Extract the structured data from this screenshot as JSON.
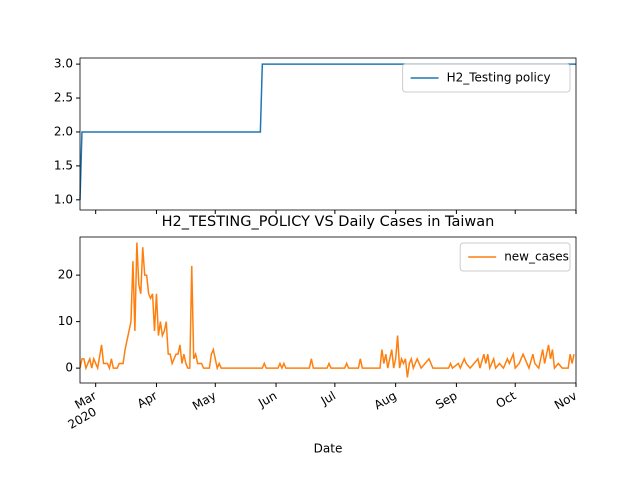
{
  "chart_data": [
    {
      "type": "line",
      "x": [
        "2020-02-22",
        "2020-02-23",
        "2020-05-24",
        "2020-05-25",
        "2020-11-01"
      ],
      "series": [
        {
          "name": "H2_Testing policy",
          "color": "#1f77b4",
          "values": [
            1,
            2,
            2,
            3,
            3
          ]
        }
      ],
      "xlim": [
        "2020-02-22",
        "2020-11-01"
      ],
      "xticks": [
        "2020-03-01",
        "2020-04-01",
        "2020-05-01",
        "2020-06-01",
        "2020-07-01",
        "2020-08-01",
        "2020-09-01",
        "2020-10-01",
        "2020-11-01"
      ],
      "ylim": [
        0.85,
        3.09
      ],
      "yticks": [
        {
          "value": 1,
          "label": "1.0"
        },
        {
          "value": 1.5,
          "label": "1.5"
        },
        {
          "value": 2,
          "label": "2.0"
        },
        {
          "value": 2.5,
          "label": "2.5"
        },
        {
          "value": 3,
          "label": "3.0"
        }
      ],
      "legend": "upper right"
    },
    {
      "type": "line",
      "title": "H2_TESTING_POLICY VS Daily Cases in Taiwan",
      "xlabel": "Date",
      "x_year_label": "2020",
      "x": [
        "2020-02-22",
        "2020-02-23",
        "2020-02-24",
        "2020-02-25",
        "2020-02-26",
        "2020-02-27",
        "2020-02-28",
        "2020-02-29",
        "2020-03-01",
        "2020-03-02",
        "2020-03-04",
        "2020-03-05",
        "2020-03-07",
        "2020-03-08",
        "2020-03-09",
        "2020-03-10",
        "2020-03-12",
        "2020-03-13",
        "2020-03-14",
        "2020-03-15",
        "2020-03-16",
        "2020-03-17",
        "2020-03-18",
        "2020-03-19",
        "2020-03-20",
        "2020-03-21",
        "2020-03-22",
        "2020-03-23",
        "2020-03-24",
        "2020-03-25",
        "2020-03-26",
        "2020-03-27",
        "2020-03-28",
        "2020-03-29",
        "2020-03-30",
        "2020-03-31",
        "2020-04-01",
        "2020-04-02",
        "2020-04-03",
        "2020-04-04",
        "2020-04-05",
        "2020-04-06",
        "2020-04-07",
        "2020-04-08",
        "2020-04-09",
        "2020-04-10",
        "2020-04-11",
        "2020-04-12",
        "2020-04-13",
        "2020-04-14",
        "2020-04-15",
        "2020-04-16",
        "2020-04-17",
        "2020-04-18",
        "2020-04-19",
        "2020-04-20",
        "2020-04-21",
        "2020-04-22",
        "2020-04-23",
        "2020-04-24",
        "2020-04-25",
        "2020-04-28",
        "2020-04-29",
        "2020-04-30",
        "2020-05-01",
        "2020-05-02",
        "2020-05-03",
        "2020-05-04",
        "2020-05-25",
        "2020-05-26",
        "2020-05-27",
        "2020-06-02",
        "2020-06-03",
        "2020-06-04",
        "2020-06-05",
        "2020-06-06",
        "2020-06-18",
        "2020-06-19",
        "2020-06-20",
        "2020-06-27",
        "2020-06-28",
        "2020-06-29",
        "2020-07-06",
        "2020-07-07",
        "2020-07-08",
        "2020-07-13",
        "2020-07-14",
        "2020-07-15",
        "2020-07-24",
        "2020-07-25",
        "2020-07-26",
        "2020-07-27",
        "2020-07-28",
        "2020-07-29",
        "2020-07-30",
        "2020-07-31",
        "2020-08-01",
        "2020-08-02",
        "2020-08-03",
        "2020-08-04",
        "2020-08-05",
        "2020-08-06",
        "2020-08-07",
        "2020-08-08",
        "2020-08-09",
        "2020-08-10",
        "2020-08-12",
        "2020-08-13",
        "2020-08-14",
        "2020-08-16",
        "2020-08-18",
        "2020-08-19",
        "2020-08-20",
        "2020-08-28",
        "2020-08-29",
        "2020-08-30",
        "2020-09-02",
        "2020-09-03",
        "2020-09-05",
        "2020-09-06",
        "2020-09-08",
        "2020-09-10",
        "2020-09-12",
        "2020-09-13",
        "2020-09-15",
        "2020-09-16",
        "2020-09-17",
        "2020-09-18",
        "2020-09-20",
        "2020-09-21",
        "2020-09-23",
        "2020-09-25",
        "2020-09-27",
        "2020-09-28",
        "2020-09-30",
        "2020-10-01",
        "2020-10-03",
        "2020-10-05",
        "2020-10-06",
        "2020-10-08",
        "2020-10-10",
        "2020-10-11",
        "2020-10-13",
        "2020-10-15",
        "2020-10-16",
        "2020-10-18",
        "2020-10-19",
        "2020-10-20",
        "2020-10-21",
        "2020-10-23",
        "2020-10-25",
        "2020-10-28",
        "2020-10-29",
        "2020-10-30",
        "2020-10-31"
      ],
      "series": [
        {
          "name": "new_cases",
          "color": "#ff7f0e",
          "values": [
            0,
            2,
            2,
            0,
            1,
            2,
            0,
            2,
            1,
            0,
            5,
            1,
            1,
            0,
            2,
            0,
            0,
            1,
            1,
            1,
            4,
            6,
            8,
            10,
            23,
            8,
            27,
            18,
            16,
            26,
            20,
            20,
            16,
            15,
            16,
            8,
            16,
            7,
            10,
            7,
            8,
            10,
            3,
            3,
            1,
            2,
            3,
            3,
            5,
            1,
            3,
            1,
            0,
            0,
            22,
            2,
            3,
            1,
            1,
            1,
            0,
            0,
            3,
            4,
            2,
            0,
            1,
            0,
            0,
            1,
            0,
            0,
            1,
            0,
            1,
            0,
            0,
            2,
            0,
            0,
            1,
            0,
            0,
            1,
            0,
            0,
            2,
            0,
            0,
            4,
            1,
            3,
            0,
            2,
            4,
            0,
            2,
            7,
            0,
            2,
            1,
            2,
            -2,
            1,
            2,
            0,
            2,
            1,
            0,
            1,
            2,
            1,
            0,
            0,
            1,
            0,
            1,
            0,
            2,
            1,
            0,
            1,
            2,
            0,
            3,
            1,
            3,
            0,
            2,
            0,
            1,
            0,
            2,
            1,
            3,
            0,
            1,
            3,
            2,
            0,
            3,
            1,
            0,
            4,
            1,
            5,
            2,
            4,
            0,
            1,
            0,
            0,
            3,
            1,
            3
          ]
        }
      ],
      "xlim": [
        "2020-02-22",
        "2020-11-01"
      ],
      "xticks": [
        {
          "value": "2020-03-01",
          "label": "Mar"
        },
        {
          "value": "2020-04-01",
          "label": "Apr"
        },
        {
          "value": "2020-05-01",
          "label": "May"
        },
        {
          "value": "2020-06-01",
          "label": "Jun"
        },
        {
          "value": "2020-07-01",
          "label": "Jul"
        },
        {
          "value": "2020-08-01",
          "label": "Aug"
        },
        {
          "value": "2020-09-01",
          "label": "Sep"
        },
        {
          "value": "2020-10-01",
          "label": "Oct"
        },
        {
          "value": "2020-11-01",
          "label": "Nov"
        }
      ],
      "ylim": [
        -3.2,
        28.2
      ],
      "yticks": [
        0,
        10,
        20
      ],
      "legend": "upper right"
    }
  ]
}
